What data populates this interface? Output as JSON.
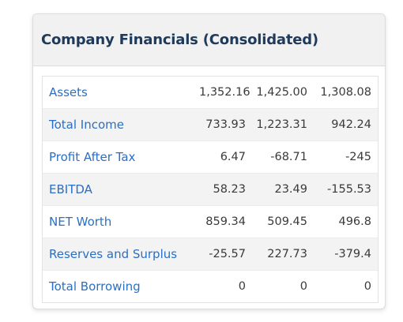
{
  "card": {
    "title": "Company Financials (Consolidated)"
  },
  "table": {
    "rows": [
      {
        "label": "Assets",
        "values": [
          "1,352.16",
          "1,425.00",
          "1,308.08"
        ]
      },
      {
        "label": "Total Income",
        "values": [
          "733.93",
          "1,223.31",
          "942.24"
        ]
      },
      {
        "label": "Profit After Tax",
        "values": [
          "6.47",
          "-68.71",
          "-245"
        ]
      },
      {
        "label": "EBITDA",
        "values": [
          "58.23",
          "23.49",
          "-155.53"
        ]
      },
      {
        "label": "NET Worth",
        "values": [
          "859.34",
          "509.45",
          "496.8"
        ]
      },
      {
        "label": "Reserves and Surplus",
        "values": [
          "-25.57",
          "227.73",
          "-379.4"
        ]
      },
      {
        "label": "Total Borrowing",
        "values": [
          "0",
          "0",
          "0"
        ]
      }
    ]
  },
  "colors": {
    "title": "#1f3a5a",
    "link": "#2a6fc4",
    "header_bg": "#f1f1f1",
    "row_alt_bg": "#f3f3f3"
  }
}
